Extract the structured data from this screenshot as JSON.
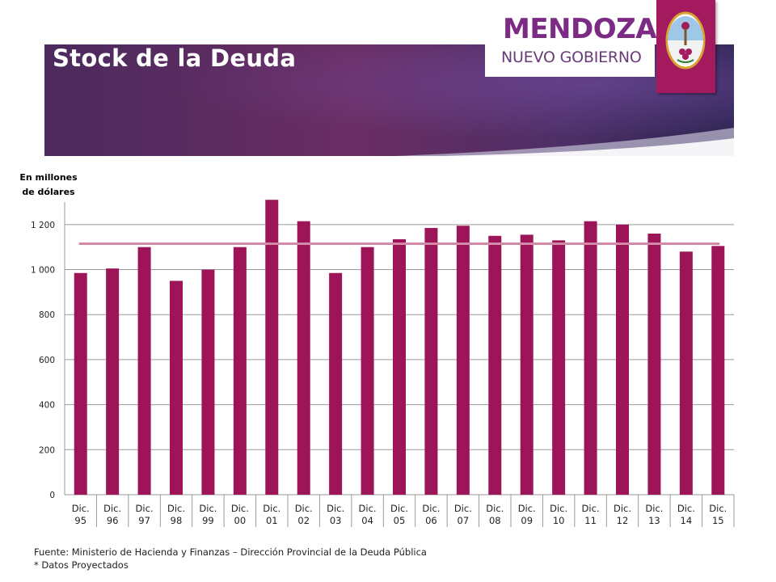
{
  "header": {
    "title": "Stock de la Deuda",
    "logo_title": "MENDOZA",
    "logo_subtitle": "NUEVO GOBIERNO"
  },
  "colors": {
    "bar": "#9e1459",
    "average_line": "#d38aa8",
    "crest_panel": "#a31a5e",
    "logo_text": "#7b2b83"
  },
  "chart_data": {
    "type": "bar",
    "ylabel": "En millones de dólares",
    "categories": [
      "Dic. 95",
      "Dic. 96",
      "Dic. 97",
      "Dic. 98",
      "Dic. 99",
      "Dic. 00",
      "Dic. 01",
      "Dic. 02",
      "Dic. 03",
      "Dic. 04",
      "Dic. 05",
      "Dic. 06",
      "Dic. 07",
      "Dic. 08",
      "Dic. 09",
      "Dic. 10",
      "Dic. 11",
      "Dic. 12",
      "Dic. 13",
      "Dic. 14",
      "Dic. 15"
    ],
    "series": [
      {
        "values": [
          985,
          1005,
          1100,
          950,
          1000,
          1100,
          1310,
          1215,
          985,
          1100,
          1135,
          1185,
          1195,
          1150,
          1155,
          1130,
          1215,
          1200,
          1160,
          1080,
          1105
        ]
      }
    ],
    "reference_line": 1115,
    "ylim": [
      0,
      1300
    ],
    "yticks": [
      0,
      200,
      400,
      600,
      800,
      1000,
      1200
    ],
    "ytick_labels": [
      "0",
      "200",
      "400",
      "600",
      "800",
      "1 000",
      "1 200"
    ],
    "grid": true
  },
  "footer": {
    "source": "Fuente: Ministerio de Hacienda y Finanzas – Dirección Provincial de la Deuda Pública",
    "note": "* Datos Proyectados"
  }
}
